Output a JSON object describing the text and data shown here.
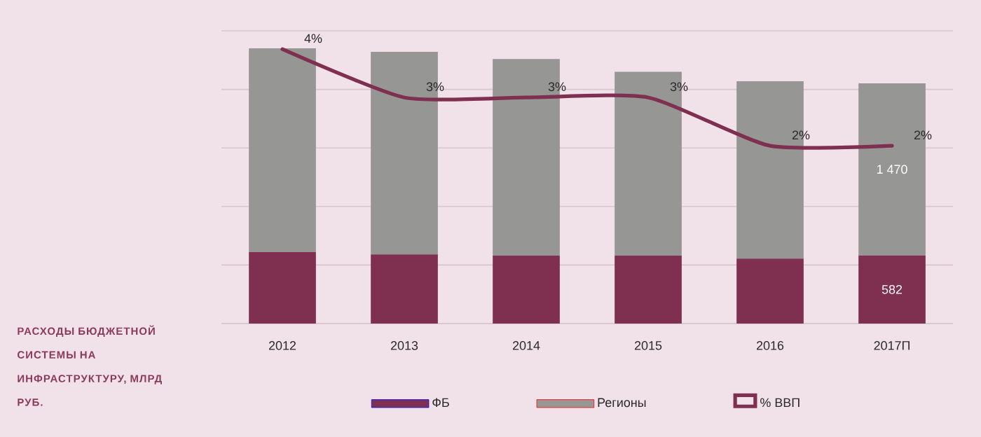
{
  "chart_data": {
    "type": "bar",
    "title": "РАСХОДЫ БЮДЖЕТНОЙ СИСТЕМЫ НА ИНФРАСТРУКТУРУ, МЛРД РУБ.",
    "categories": [
      "2012",
      "2013",
      "2014",
      "2015",
      "2016",
      "2017П"
    ],
    "stacked": true,
    "series": [
      {
        "name": "ФБ",
        "color": "#7f3050",
        "values": [
          610,
          590,
          580,
          580,
          555,
          582
        ],
        "value_labels": [
          null,
          null,
          null,
          null,
          null,
          "582"
        ]
      },
      {
        "name": "Регионы",
        "color": "#969694",
        "values": [
          1740,
          1730,
          1680,
          1570,
          1515,
          1470
        ],
        "value_labels": [
          null,
          null,
          null,
          null,
          null,
          "1 470"
        ]
      },
      {
        "name": "% ВВП",
        "type": "line",
        "axis": "y2",
        "color": "#7f3050",
        "values": [
          4,
          3,
          3,
          3,
          2,
          2
        ],
        "value_labels": [
          "4%",
          "3%",
          "3%",
          "3%",
          "2%",
          "2%"
        ]
      }
    ],
    "grid": "y",
    "legend": "bottom",
    "tick_labels": "x"
  }
}
